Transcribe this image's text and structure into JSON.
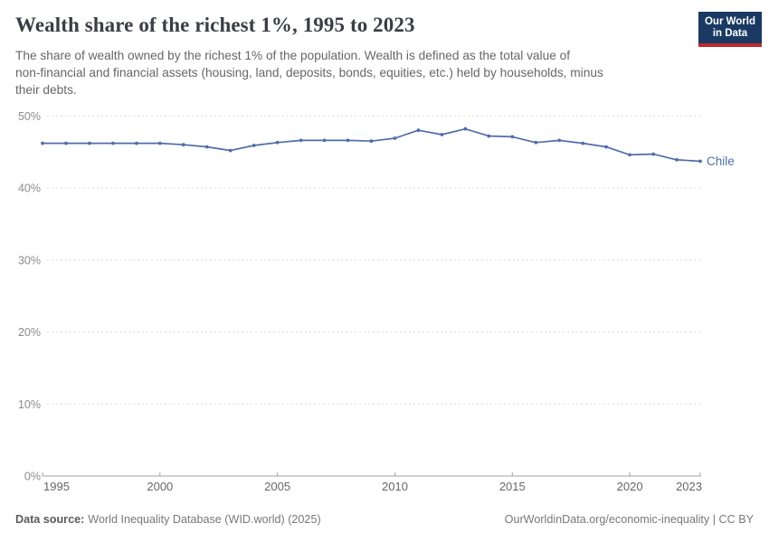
{
  "header": {
    "title": "Wealth share of the richest 1%, 1995 to 2023",
    "logo": {
      "line1": "Our World",
      "line2": "in Data"
    }
  },
  "subtitle": {
    "lines": [
      "The share of wealth owned by the richest 1% of the population. Wealth is defined as the total value of",
      "non-financial and financial assets (housing, land, deposits, bonds, equities, etc.) held by households, minus",
      "their debts."
    ]
  },
  "chart_data": {
    "type": "line",
    "title": "Wealth share of the richest 1%, 1995 to 2023",
    "xlabel": "",
    "ylabel": "",
    "ylim": [
      0,
      50
    ],
    "xlim": [
      1995,
      2023
    ],
    "grid": "horizontal-dashed",
    "legend_position": "end-of-line-label",
    "yticks": [
      {
        "value": 0,
        "label": "0%"
      },
      {
        "value": 10,
        "label": "10%"
      },
      {
        "value": 20,
        "label": "20%"
      },
      {
        "value": 30,
        "label": "30%"
      },
      {
        "value": 40,
        "label": "40%"
      },
      {
        "value": 50,
        "label": "50%"
      }
    ],
    "xticks": [
      {
        "value": 1995,
        "label": "1995"
      },
      {
        "value": 2000,
        "label": "2000"
      },
      {
        "value": 2005,
        "label": "2005"
      },
      {
        "value": 2010,
        "label": "2010"
      },
      {
        "value": 2015,
        "label": "2015"
      },
      {
        "value": 2020,
        "label": "2020"
      },
      {
        "value": 2023,
        "label": "2023"
      }
    ],
    "series": [
      {
        "name": "Chile",
        "color": "#4e6ea9",
        "x": [
          1995,
          1996,
          1997,
          1998,
          1999,
          2000,
          2001,
          2002,
          2003,
          2004,
          2005,
          2006,
          2007,
          2008,
          2009,
          2010,
          2011,
          2012,
          2013,
          2014,
          2015,
          2016,
          2017,
          2018,
          2019,
          2020,
          2021,
          2022,
          2023
        ],
        "values": [
          46.2,
          46.2,
          46.2,
          46.2,
          46.2,
          46.2,
          46.0,
          45.7,
          45.2,
          45.9,
          46.3,
          46.6,
          46.6,
          46.6,
          46.5,
          46.9,
          48.0,
          47.4,
          48.2,
          47.2,
          47.1,
          46.3,
          46.6,
          46.2,
          45.7,
          44.6,
          44.7,
          43.9,
          43.7
        ]
      }
    ]
  },
  "footer": {
    "source_label": "Data source:",
    "source_text": "World Inequality Database (WID.world) (2025)",
    "credit": "OurWorldinData.org/economic-inequality | CC BY"
  },
  "colors": {
    "line": "#4e6ea9",
    "logo_bg": "#1a3a63",
    "logo_accent": "#bf2a2e",
    "gridline": "#dcdcdc",
    "axis": "#a3a3a3",
    "y_tick_text": "#8c8c8c",
    "x_tick_text": "#666666"
  }
}
